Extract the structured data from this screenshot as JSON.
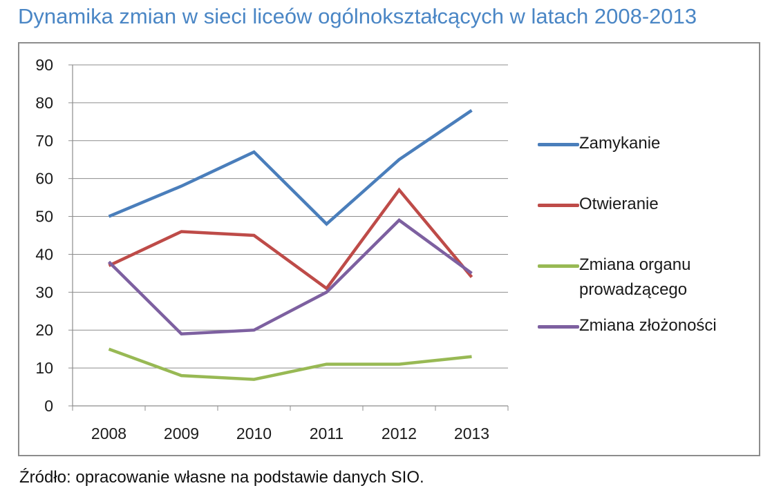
{
  "title": "Dynamika zmian w sieci liceów ogólnokształcących w latach 2008-2013",
  "source": "Źródło: opracowanie własne na podstawie danych SIO.",
  "chart_data": {
    "type": "line",
    "title": "Dynamika zmian w sieci liceów ogólnokształcących w latach 2008-2013",
    "xlabel": "",
    "ylabel": "",
    "categories": [
      "2008",
      "2009",
      "2010",
      "2011",
      "2012",
      "2013"
    ],
    "ylim": [
      0,
      90
    ],
    "yticks": [
      "0",
      "10",
      "20",
      "30",
      "40",
      "50",
      "60",
      "70",
      "80",
      "90"
    ],
    "grid": true,
    "legend_position": "right",
    "series": [
      {
        "name": "Zamykanie",
        "color": "#4a7ebb",
        "values": [
          50,
          58,
          67,
          48,
          65,
          78
        ]
      },
      {
        "name": "Otwieranie",
        "color": "#be4b48",
        "values": [
          37,
          46,
          45,
          31,
          57,
          34
        ]
      },
      {
        "name": "Zmiana organu prowadzącego",
        "color": "#98b954",
        "values": [
          15,
          8,
          7,
          11,
          11,
          13
        ]
      },
      {
        "name": "Zmiana złożoności",
        "color": "#7d60a0",
        "values": [
          38,
          19,
          20,
          30,
          49,
          35
        ]
      }
    ]
  }
}
